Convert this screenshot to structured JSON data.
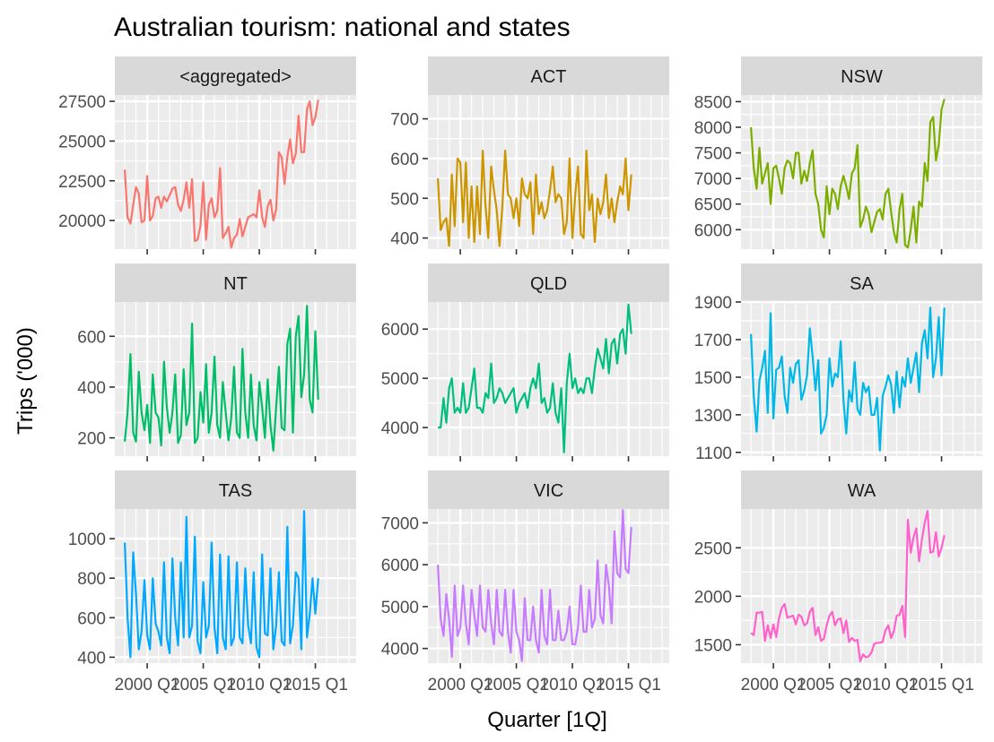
{
  "chart_data": {
    "type": "line",
    "title": "Australian tourism: national and states",
    "xlabel": "Quarter [1Q]",
    "ylabel": "Trips ('000)",
    "x_start": "1998 Q1",
    "x_end": "2017 Q4",
    "x_ticks": [
      "2000 Q1",
      "2005 Q1",
      "2010 Q1",
      "2015 Q1"
    ],
    "grid": true,
    "legend": "none",
    "panels": [
      {
        "name": "<aggregated>",
        "color": "#F8766D",
        "ylim": [
          18200,
          27900
        ],
        "yticks": [
          20000,
          22500,
          25000,
          27500
        ],
        "values": [
          23200,
          20200,
          19800,
          21000,
          22100,
          21700,
          19900,
          20000,
          22800,
          20000,
          20300,
          21400,
          21500,
          20800,
          21500,
          21200,
          21600,
          22000,
          22100,
          21000,
          20600,
          21300,
          22400,
          20800,
          22600,
          18700,
          18800,
          19700,
          22400,
          18800,
          21000,
          21400,
          20200,
          20600,
          23300,
          18900,
          19200,
          19600,
          18300,
          18900,
          19100,
          20100,
          19000,
          19600,
          20200,
          20300,
          20400,
          20200,
          21900,
          20200,
          19600,
          20900,
          21300,
          20000,
          20700,
          24300,
          24000,
          22300,
          24000,
          25100,
          23600,
          24200,
          26600,
          24300,
          24300,
          27000,
          27500,
          26000,
          26500,
          27600
        ]
      },
      {
        "name": "ACT",
        "color": "#CD9600",
        "ylim": [
          372,
          760
        ],
        "yticks": [
          400,
          500,
          600,
          700
        ],
        "values": [
          550,
          420,
          440,
          450,
          380,
          560,
          430,
          600,
          590,
          440,
          590,
          400,
          530,
          390,
          530,
          410,
          620,
          480,
          400,
          580,
          520,
          470,
          380,
          480,
          620,
          510,
          500,
          450,
          500,
          430,
          550,
          510,
          500,
          540,
          410,
          560,
          460,
          490,
          450,
          470,
          520,
          580,
          490,
          510,
          500,
          410,
          440,
          600,
          400,
          510,
          580,
          410,
          400,
          620,
          470,
          510,
          390,
          500,
          460,
          490,
          560,
          450,
          500,
          440,
          490,
          530,
          510,
          600,
          470,
          560
        ]
      },
      {
        "name": "NSW",
        "color": "#7CAE00",
        "ylim": [
          5620,
          8630
        ],
        "yticks": [
          6000,
          6500,
          7000,
          7500,
          8000,
          8500
        ],
        "values": [
          8000,
          7200,
          6800,
          7600,
          6900,
          7100,
          7300,
          6500,
          7200,
          7250,
          7000,
          6700,
          7200,
          7350,
          7300,
          7000,
          7500,
          7500,
          6900,
          7150,
          6950,
          7300,
          7550,
          6700,
          6500,
          6000,
          5850,
          6850,
          6300,
          6800,
          6700,
          6400,
          6850,
          7050,
          6850,
          6600,
          7100,
          7200,
          7650,
          6050,
          6200,
          6450,
          6300,
          5950,
          6150,
          6350,
          6400,
          6200,
          6700,
          6800,
          6350,
          5950,
          5750,
          6400,
          6700,
          5700,
          5650,
          6000,
          6450,
          5750,
          6550,
          6450,
          7300,
          6950,
          8100,
          8200,
          7350,
          7650,
          8350,
          8550
        ]
      },
      {
        "name": "NT",
        "color": "#00BE67",
        "ylim": [
          128,
          735
        ],
        "yticks": [
          200,
          400,
          600
        ],
        "values": [
          185,
          300,
          530,
          220,
          185,
          460,
          300,
          230,
          330,
          180,
          450,
          300,
          280,
          170,
          500,
          320,
          220,
          300,
          450,
          180,
          210,
          470,
          250,
          300,
          650,
          180,
          200,
          380,
          260,
          490,
          220,
          300,
          520,
          250,
          200,
          420,
          300,
          190,
          280,
          480,
          220,
          200,
          550,
          300,
          200,
          450,
          250,
          190,
          420,
          320,
          200,
          430,
          250,
          150,
          320,
          480,
          240,
          230,
          570,
          630,
          220,
          600,
          680,
          360,
          450,
          720,
          350,
          300,
          620,
          350
        ]
      },
      {
        "name": "QLD",
        "color": "#00BF7D",
        "ylim": [
          3420,
          6550
        ],
        "yticks": [
          4000,
          5000,
          6000
        ],
        "values": [
          4000,
          4000,
          4600,
          4100,
          4800,
          5000,
          4300,
          4400,
          4300,
          4900,
          4300,
          4400,
          4800,
          5200,
          4400,
          4400,
          4300,
          4700,
          4600,
          5300,
          4500,
          4600,
          4800,
          4700,
          4500,
          4600,
          4700,
          4800,
          4300,
          4500,
          4600,
          4700,
          4400,
          4800,
          5000,
          4800,
          5300,
          4500,
          4600,
          4300,
          4400,
          4900,
          4300,
          4100,
          4800,
          3500,
          4900,
          5500,
          4800,
          5000,
          4700,
          4800,
          4700,
          5000,
          5000,
          4700,
          5200,
          5600,
          5400,
          5200,
          5800,
          5100,
          5700,
          5800,
          5300,
          5900,
          6000,
          5500,
          6500,
          5900
        ]
      },
      {
        "name": "SA",
        "color": "#00B8E7",
        "ylim": [
          1080,
          1900
        ],
        "yticks": [
          1100,
          1300,
          1500,
          1700,
          1900
        ],
        "values": [
          1730,
          1400,
          1210,
          1480,
          1550,
          1640,
          1310,
          1840,
          1280,
          1540,
          1550,
          1610,
          1400,
          1310,
          1550,
          1470,
          1570,
          1590,
          1380,
          1430,
          1510,
          1760,
          1610,
          1430,
          1590,
          1200,
          1230,
          1300,
          1600,
          1450,
          1520,
          1500,
          1690,
          1380,
          1200,
          1430,
          1370,
          1580,
          1330,
          1300,
          1470,
          1420,
          1450,
          1300,
          1300,
          1390,
          1110,
          1400,
          1450,
          1510,
          1460,
          1310,
          1530,
          1340,
          1500,
          1450,
          1600,
          1470,
          1550,
          1630,
          1420,
          1680,
          1750,
          1600,
          1870,
          1500,
          1600,
          1820,
          1510,
          1870
        ]
      },
      {
        "name": "TAS",
        "color": "#00A9FF",
        "ylim": [
          370,
          1150
        ],
        "yticks": [
          400,
          600,
          800,
          1000
        ],
        "values": [
          980,
          600,
          400,
          930,
          720,
          440,
          530,
          790,
          510,
          440,
          800,
          570,
          530,
          460,
          880,
          500,
          420,
          900,
          600,
          460,
          880,
          500,
          1110,
          500,
          560,
          1010,
          480,
          420,
          780,
          500,
          560,
          980,
          550,
          420,
          920,
          500,
          440,
          910,
          460,
          500,
          880,
          500,
          470,
          850,
          560,
          470,
          830,
          450,
          400,
          920,
          520,
          510,
          850,
          440,
          560,
          830,
          480,
          460,
          1060,
          470,
          560,
          830,
          800,
          440,
          1140,
          500,
          620,
          800,
          620,
          800
        ]
      },
      {
        "name": "VIC",
        "color": "#C77CFF",
        "ylim": [
          3650,
          7330
        ],
        "yticks": [
          4000,
          5000,
          6000,
          7000
        ],
        "values": [
          6000,
          4700,
          4300,
          5300,
          4700,
          3800,
          5500,
          4300,
          4500,
          5500,
          4600,
          4100,
          5400,
          4800,
          4300,
          5500,
          4500,
          4400,
          5400,
          4600,
          4100,
          5400,
          4400,
          4300,
          5400,
          4400,
          3900,
          5400,
          4400,
          4200,
          3700,
          5200,
          4200,
          4200,
          5000,
          4200,
          3900,
          5400,
          4300,
          4100,
          5400,
          4200,
          4200,
          4900,
          4200,
          4200,
          4400,
          5000,
          4100,
          4100,
          4500,
          5500,
          4400,
          4400,
          5400,
          4500,
          4700,
          6100,
          4800,
          4600,
          6000,
          5500,
          4600,
          6800,
          5800,
          5700,
          7300,
          5900,
          5800,
          6900
        ]
      },
      {
        "name": "WA",
        "color": "#FF61CC",
        "ylim": [
          1310,
          2900
        ],
        "yticks": [
          1500,
          2000,
          2500
        ],
        "values": [
          1620,
          1600,
          1830,
          1830,
          1840,
          1540,
          1700,
          1570,
          1710,
          1580,
          1770,
          1880,
          1920,
          1780,
          1790,
          1800,
          1710,
          1810,
          1790,
          1700,
          1720,
          1840,
          1880,
          1600,
          1680,
          1540,
          1560,
          1700,
          1800,
          1840,
          1700,
          1760,
          1770,
          1620,
          1750,
          1530,
          1570,
          1540,
          1550,
          1330,
          1400,
          1370,
          1380,
          1420,
          1510,
          1520,
          1520,
          1530,
          1650,
          1700,
          1570,
          1640,
          1800,
          1810,
          1900,
          1580,
          2790,
          2450,
          2610,
          2700,
          2360,
          2590,
          2760,
          2880,
          2450,
          2460,
          2660,
          2410,
          2500,
          2630
        ]
      }
    ]
  }
}
